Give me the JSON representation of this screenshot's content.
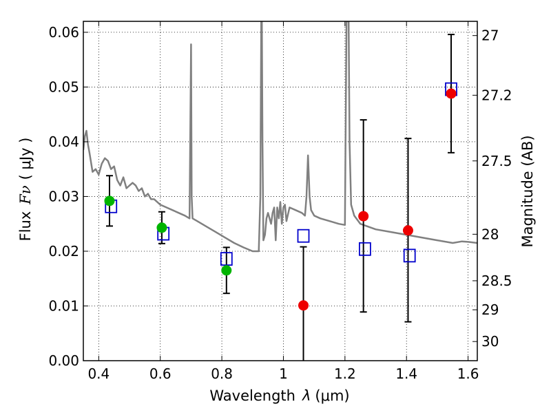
{
  "chart_data": {
    "type": "scatter",
    "xlabel_main": "Wavelength",
    "xlabel_var": "λ",
    "xlabel_unit": "(μm)",
    "ylabel_main": "Flux",
    "ylabel_var": "Fν",
    "ylabel_unit": "( μJy )",
    "y2label": "Magnitude (AB)",
    "xlim": [
      0.35,
      1.63
    ],
    "ylim": [
      0.0,
      0.062
    ],
    "grid": true,
    "xticks": [
      0.4,
      0.6,
      0.8,
      1.0,
      1.2,
      1.4,
      1.6
    ],
    "xtick_labels": [
      "0.4",
      "0.6",
      "0.8",
      "1",
      "1.2",
      "1.4",
      "1.6"
    ],
    "yticks": [
      0.0,
      0.01,
      0.02,
      0.03,
      0.04,
      0.05,
      0.06
    ],
    "ytick_labels": [
      "0.00",
      "0.01",
      "0.02",
      "0.03",
      "0.04",
      "0.05",
      "0.06"
    ],
    "y2ticks": [
      {
        "flux": 0.0594,
        "label": "27"
      },
      {
        "flux": 0.0485,
        "label": "27.2"
      },
      {
        "flux": 0.0365,
        "label": "27.5"
      },
      {
        "flux": 0.0231,
        "label": "28"
      },
      {
        "flux": 0.0146,
        "label": "28.5"
      },
      {
        "flux": 0.0093,
        "label": "29"
      },
      {
        "flux": 0.0035,
        "label": "30"
      }
    ],
    "series": [
      {
        "style": "line",
        "color": "#808080",
        "x": [
          0.35,
          0.355,
          0.36,
          0.365,
          0.37,
          0.38,
          0.39,
          0.4,
          0.41,
          0.42,
          0.43,
          0.44,
          0.45,
          0.46,
          0.47,
          0.48,
          0.49,
          0.5,
          0.51,
          0.52,
          0.53,
          0.54,
          0.55,
          0.56,
          0.57,
          0.58,
          0.59,
          0.6,
          0.62,
          0.64,
          0.66,
          0.68,
          0.695,
          0.698,
          0.7,
          0.702,
          0.705,
          0.72,
          0.75,
          0.78,
          0.81,
          0.84,
          0.87,
          0.9,
          0.92,
          0.925,
          0.928,
          0.93,
          0.932,
          0.935,
          0.94,
          0.945,
          0.95,
          0.96,
          0.965,
          0.97,
          0.975,
          0.98,
          0.985,
          0.99,
          0.995,
          1.0,
          1.005,
          1.01,
          1.02,
          1.04,
          1.06,
          1.07,
          1.075,
          1.08,
          1.085,
          1.09,
          1.1,
          1.12,
          1.15,
          1.18,
          1.2,
          1.202,
          1.205,
          1.208,
          1.212,
          1.215,
          1.22,
          1.23,
          1.25,
          1.3,
          1.35,
          1.4,
          1.45,
          1.5,
          1.55,
          1.58,
          1.6,
          1.63
        ],
        "y": [
          0.0385,
          0.041,
          0.042,
          0.0395,
          0.038,
          0.0345,
          0.035,
          0.034,
          0.036,
          0.037,
          0.0365,
          0.035,
          0.0355,
          0.033,
          0.032,
          0.0335,
          0.0315,
          0.032,
          0.0325,
          0.032,
          0.031,
          0.0315,
          0.03,
          0.0305,
          0.0295,
          0.0295,
          0.029,
          0.0285,
          0.028,
          0.0275,
          0.027,
          0.0265,
          0.026,
          0.045,
          0.0578,
          0.03,
          0.026,
          0.0255,
          0.0245,
          0.0235,
          0.0225,
          0.0215,
          0.0207,
          0.02,
          0.02,
          0.03,
          0.062,
          0.062,
          0.04,
          0.022,
          0.023,
          0.026,
          0.027,
          0.025,
          0.027,
          0.028,
          0.022,
          0.028,
          0.026,
          0.029,
          0.025,
          0.028,
          0.0285,
          0.0255,
          0.028,
          0.0275,
          0.027,
          0.0265,
          0.03,
          0.0375,
          0.03,
          0.0275,
          0.0265,
          0.026,
          0.0255,
          0.025,
          0.0248,
          0.04,
          0.062,
          0.062,
          0.062,
          0.04,
          0.0285,
          0.0265,
          0.025,
          0.024,
          0.0235,
          0.023,
          0.0225,
          0.022,
          0.0215,
          0.0218,
          0.0217,
          0.0215
        ]
      },
      {
        "style": "open-square",
        "color": "#0000cc",
        "x": [
          0.44,
          0.61,
          0.815,
          1.065,
          1.265,
          1.41,
          1.545
        ],
        "y": [
          0.0282,
          0.0232,
          0.0186,
          0.0228,
          0.0204,
          0.0192,
          0.0496
        ]
      },
      {
        "style": "filled-circle",
        "color": "#00b400",
        "x": [
          0.435,
          0.605,
          0.815
        ],
        "y": [
          0.0292,
          0.0243,
          0.0165
        ],
        "err_low": [
          0.0246,
          0.0214,
          0.0123
        ],
        "err_high": [
          0.0338,
          0.0272,
          0.0207
        ]
      },
      {
        "style": "filled-circle",
        "color": "#ee0000",
        "x": [
          1.065,
          1.26,
          1.405,
          1.545
        ],
        "y": [
          0.0101,
          0.0264,
          0.0238,
          0.0488
        ],
        "err_low": [
          0.0,
          0.0089,
          0.0071,
          0.038
        ],
        "err_high": [
          0.0208,
          0.044,
          0.0406,
          0.0596
        ]
      }
    ]
  }
}
